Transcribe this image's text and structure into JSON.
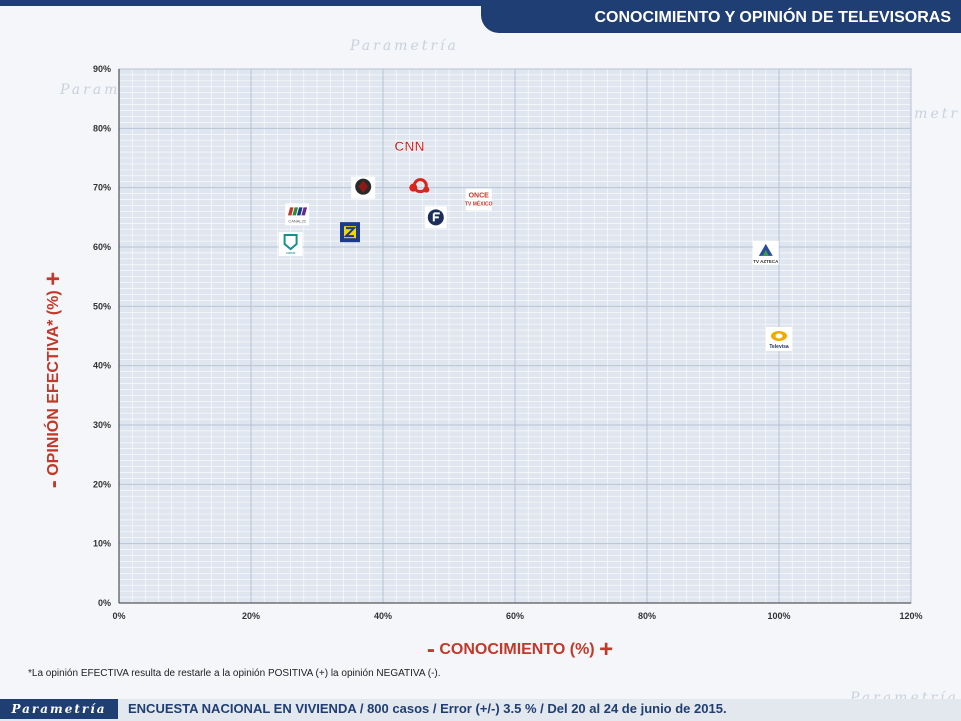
{
  "header": {
    "title": "CONOCIMIENTO Y OPINIÓN DE TELEVISORAS"
  },
  "watermark": {
    "text": "Parametría"
  },
  "axis_labels": {
    "y_minus": "-",
    "y_text": "OPINIÓN EFECTIVA* (%)",
    "y_plus": "+",
    "x_minus": "-",
    "x_text": "CONOCIMIENTO (%)",
    "x_plus": "+"
  },
  "footnote": "*La opinión EFECTIVA resulta de restarle a la opinión POSITIVA (+) la opinión NEGATIVA (-).",
  "footer": {
    "logo": "Parametría",
    "text": "ENCUESTA NACIONAL EN VIVIENDA / 800 casos / Error (+/-) 3.5 % / Del 20 al 24 de junio de 2015."
  },
  "chart_data": {
    "type": "scatter",
    "xlim": [
      0,
      120
    ],
    "ylim": [
      0,
      90
    ],
    "x_ticks": [
      0,
      20,
      40,
      60,
      80,
      100,
      120
    ],
    "y_ticks": [
      0,
      10,
      20,
      30,
      40,
      50,
      60,
      70,
      80,
      90
    ],
    "x_tick_labels": [
      "0%",
      "20%",
      "40%",
      "60%",
      "80%",
      "100%",
      "120%"
    ],
    "y_tick_labels": [
      "0%",
      "10%",
      "20%",
      "30%",
      "40%",
      "50%",
      "60%",
      "70%",
      "80%",
      "90%"
    ],
    "grid": true,
    "points": [
      {
        "x": 44,
        "y": 77,
        "marker": "cnn-logo",
        "text": "CNN",
        "color": "#cc1f1f"
      },
      {
        "x": 37,
        "y": 70,
        "marker": "round-logo",
        "color": "#8b1a1a"
      },
      {
        "x": 45.5,
        "y": 70,
        "marker": "red-swirl-logo",
        "color": "#d9261c"
      },
      {
        "x": 54.5,
        "y": 68,
        "marker": "canal-once-logo",
        "text": "ONCE TV MÉXICO",
        "color": "#c0392b"
      },
      {
        "x": 27,
        "y": 65.5,
        "marker": "canal-22-logo",
        "text": "CANAL22",
        "color": "#2e8b3a"
      },
      {
        "x": 48,
        "y": 65,
        "marker": "dark-circle-logo",
        "color": "#1b2f5a"
      },
      {
        "x": 35,
        "y": 62.5,
        "marker": "square-logo",
        "color": "#1b3a8c"
      },
      {
        "x": 26,
        "y": 60.5,
        "marker": "teal-shield-logo",
        "text": "canal",
        "color": "#1a8f8f"
      },
      {
        "x": 98,
        "y": 59,
        "marker": "tv-azteca-logo",
        "text": "TV AZTECA",
        "color": "#2b4c9c"
      },
      {
        "x": 100,
        "y": 44.5,
        "marker": "televisa-logo",
        "text": "Televisa",
        "color": "#f2a900"
      }
    ]
  }
}
